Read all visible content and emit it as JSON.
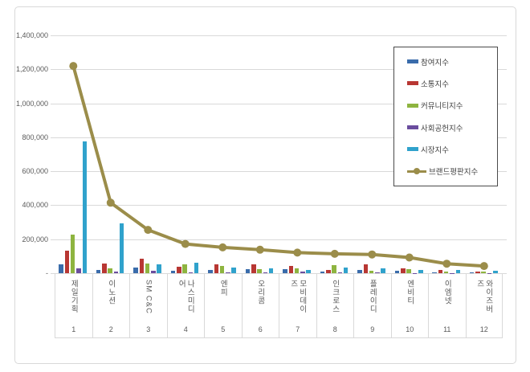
{
  "chart_data": {
    "type": "bar+line",
    "title": "",
    "categories": [
      "제일기획",
      "이노션",
      "SM C&C",
      "나스미디어",
      "엔피",
      "오리콤",
      "모비데이즈",
      "인크로스",
      "플레이디",
      "엔비티",
      "이엠넷",
      "와이즈버즈"
    ],
    "ranks": [
      "1",
      "2",
      "3",
      "4",
      "5",
      "6",
      "7",
      "8",
      "9",
      "10",
      "11",
      "12"
    ],
    "series": [
      {
        "name": "참여지수",
        "color": "#3a6cab",
        "values": [
          52000,
          17000,
          35000,
          14000,
          20000,
          26000,
          25000,
          10000,
          20000,
          14000,
          5000,
          6000
        ]
      },
      {
        "name": "소통지수",
        "color": "#b83733",
        "values": [
          132000,
          55000,
          85000,
          36000,
          52000,
          50000,
          43000,
          20000,
          50000,
          28000,
          21000,
          12000
        ]
      },
      {
        "name": "커뮤니티지수",
        "color": "#8eb440",
        "values": [
          225000,
          27000,
          55000,
          52000,
          44000,
          23000,
          28000,
          48000,
          16000,
          24000,
          8000,
          10000
        ]
      },
      {
        "name": "사회공헌지수",
        "color": "#6a4d9e",
        "values": [
          28000,
          11000,
          13000,
          6000,
          6000,
          5000,
          8000,
          3000,
          3000,
          2000,
          2000,
          2000
        ]
      },
      {
        "name": "시장지수",
        "color": "#30a2cc",
        "values": [
          775000,
          292000,
          50000,
          62000,
          33000,
          29000,
          18000,
          34000,
          28000,
          19000,
          19000,
          15000
        ]
      }
    ],
    "line_series": {
      "name": "브랜드평판지수",
      "color": "#9b8d4a",
      "values": [
        1220000,
        415000,
        255000,
        172000,
        152000,
        138000,
        121000,
        114000,
        110000,
        92000,
        56000,
        42000
      ]
    },
    "ylim": [
      0,
      1400000
    ],
    "yticks": [
      {
        "label": "1,400,000",
        "value": 1400000
      },
      {
        "label": "1,200,000",
        "value": 1200000
      },
      {
        "label": "1,000,000",
        "value": 1000000
      },
      {
        "label": "800,000",
        "value": 800000
      },
      {
        "label": "600,000",
        "value": 600000
      },
      {
        "label": "400,000",
        "value": 400000
      },
      {
        "label": "200,000",
        "value": 200000
      },
      {
        "label": "-",
        "value": 0
      }
    ],
    "grid": true,
    "legend_position": "upper right"
  },
  "colors": {
    "grid": "#d9d9d9",
    "axis_text": "#595959",
    "panel_border": "#d8d8d8",
    "legend_border": "#4a4a4a",
    "legend_text": "#3f3f3f"
  }
}
